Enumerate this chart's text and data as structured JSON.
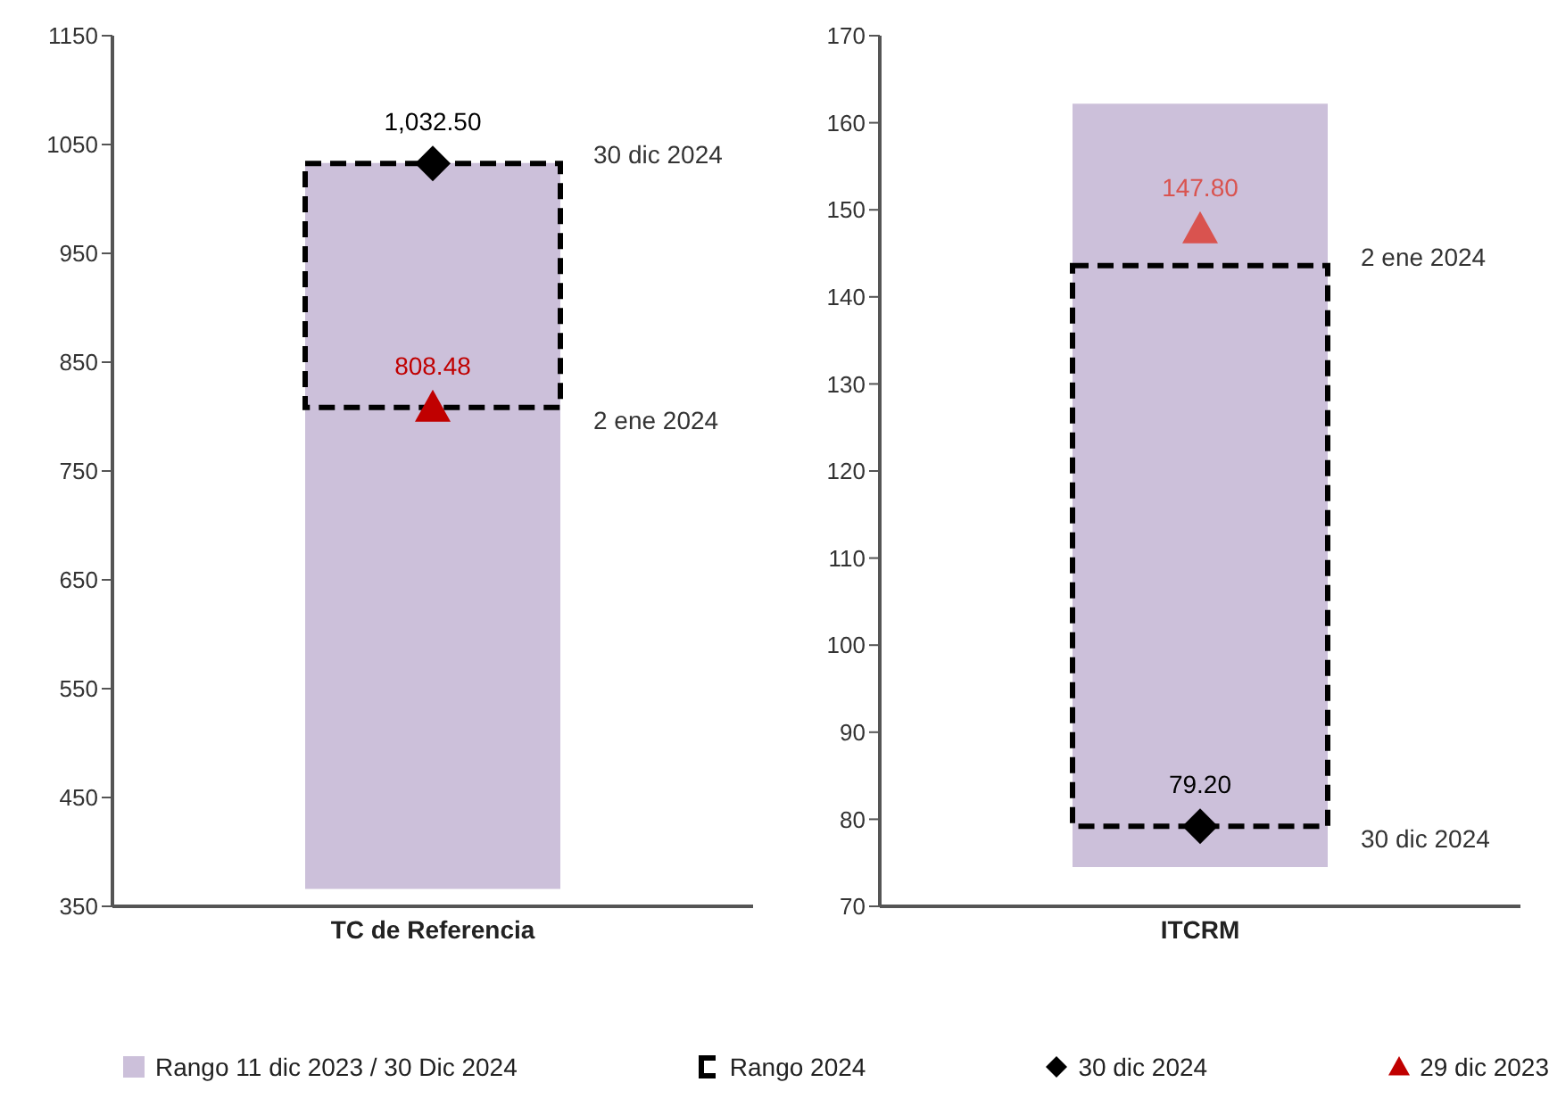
{
  "chart_data": [
    {
      "type": "bar",
      "categories": [
        "TC de Referencia"
      ],
      "ylim": [
        350,
        1150
      ],
      "yticks": [
        350,
        450,
        550,
        650,
        750,
        850,
        950,
        1050,
        1150
      ],
      "legend": "bottom",
      "series": [
        {
          "name": "Rango  11 dic 2023 / 30 Dic 2024",
          "type": "bar",
          "color": "#ccc0da",
          "base": [
            366
          ],
          "values": [
            667
          ]
        },
        {
          "name": "Rango 2024",
          "type": "bar",
          "color": "#000000",
          "line_style": "dashed",
          "base": [
            808.48
          ],
          "values": [
            224
          ]
        },
        {
          "name": "30 dic 2024",
          "type": "scatter",
          "marker": "diamond",
          "color": "#000000",
          "values": [
            1032.5
          ],
          "value_labels": [
            "1,032.50"
          ]
        },
        {
          "name": "29 dic 2023",
          "type": "scatter",
          "marker": "triangle",
          "color": "#c00000",
          "values": [
            808.48
          ],
          "value_labels": [
            "808.48"
          ]
        }
      ],
      "annotations": [
        "30 dic 2024",
        "2 ene 2024"
      ]
    },
    {
      "type": "bar",
      "categories": [
        "ITCRM"
      ],
      "ylim": [
        70,
        170
      ],
      "yticks": [
        70,
        80,
        90,
        100,
        110,
        120,
        130,
        140,
        150,
        160,
        170
      ],
      "series": [
        {
          "type": "bar",
          "color": "#ccc0da",
          "base": [
            74.5
          ],
          "values": [
            87.7
          ]
        },
        {
          "type": "bar",
          "color": "#000000",
          "line_style": "dashed",
          "base": [
            79.2
          ],
          "values": [
            64.4
          ]
        },
        {
          "type": "scatter",
          "marker": "diamond",
          "color": "#000000",
          "values": [
            79.2
          ],
          "value_labels": [
            "79.20"
          ]
        },
        {
          "type": "scatter",
          "marker": "triangle",
          "color": "#d9534f",
          "values": [
            147.8
          ],
          "value_labels": [
            "147.80"
          ]
        }
      ],
      "annotations": [
        "2 ene 2024",
        "30 dic 2024"
      ]
    }
  ]
}
